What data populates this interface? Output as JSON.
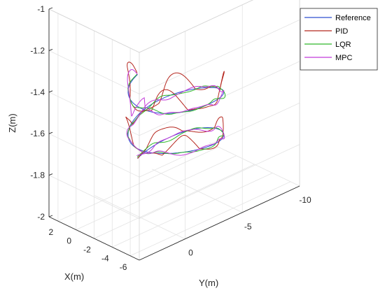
{
  "chart_data": {
    "type": "line",
    "projection": "3d",
    "title": "",
    "xlabel": "X(m)",
    "ylabel": "Y(m)",
    "zlabel": "Z(m)",
    "xlim": [
      -7,
      3
    ],
    "ylim": [
      -10,
      4
    ],
    "zlim": [
      -2,
      -1
    ],
    "x_ticks": [
      "2",
      "0",
      "-2",
      "-4",
      "-6"
    ],
    "y_ticks": [
      "0",
      "-5",
      "-10"
    ],
    "z_ticks": [
      "-1",
      "-1.2",
      "-1.4",
      "-1.6",
      "-1.8",
      "-2"
    ],
    "grid": true,
    "legend_position": "top-right",
    "series": [
      {
        "name": "Reference",
        "color": "#2e4fd1"
      },
      {
        "name": "PID",
        "color": "#b5271f"
      },
      {
        "name": "LQR",
        "color": "#2fb82a"
      },
      {
        "name": "MPC",
        "color": "#c23ad9"
      }
    ]
  }
}
